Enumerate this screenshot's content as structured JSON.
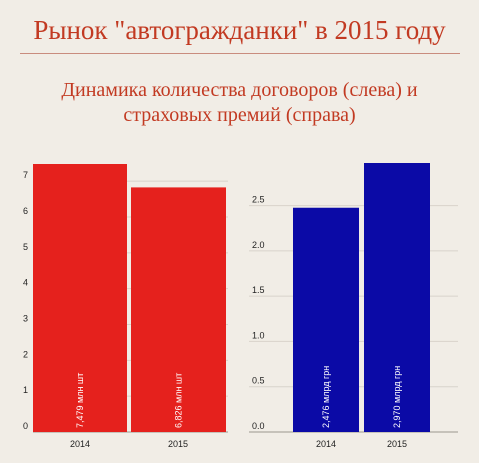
{
  "header": {
    "title": "Рынок \"автогражданки\" в 2015 году",
    "subtitle_line1": "Динамика количества договоров (слева) и",
    "subtitle_line2": "страховых премий (справа)"
  },
  "colors": {
    "background": "#f1ede6",
    "title": "#c23a22",
    "left_bars": "#e5211d",
    "right_bars": "#0b0aa6",
    "gridline": "#d8d3cb"
  },
  "chart_data": [
    {
      "type": "bar",
      "title": "",
      "categories": [
        "2014",
        "2015"
      ],
      "values": [
        7.479,
        6.826
      ],
      "bar_labels": [
        "7,479 млн шт",
        "6,826 млн шт"
      ],
      "yticks": [
        0,
        1,
        2,
        3,
        4,
        5,
        6,
        7
      ],
      "ytick_labels": [
        "0",
        "1",
        "2",
        "3",
        "4",
        "5",
        "6",
        "7"
      ],
      "ylim": [
        0,
        7.479
      ],
      "xlabel": "",
      "ylabel": "",
      "grid": true,
      "legend": "none",
      "color": "#e5211d"
    },
    {
      "type": "bar",
      "title": "",
      "categories": [
        "2014",
        "2015"
      ],
      "values": [
        2.476,
        2.97
      ],
      "bar_labels": [
        "2,476 млрд грн",
        "2,970 млрд грн"
      ],
      "yticks": [
        0,
        0.5,
        1,
        1.5,
        2,
        2.5
      ],
      "ytick_labels": [
        "0.0",
        "0.5",
        "1.0",
        "1.5",
        "2.0",
        "2.5"
      ],
      "ylim": [
        0,
        2.97
      ],
      "xlabel": "",
      "ylabel": "",
      "grid": true,
      "legend": "none",
      "color": "#0b0aa6"
    }
  ]
}
